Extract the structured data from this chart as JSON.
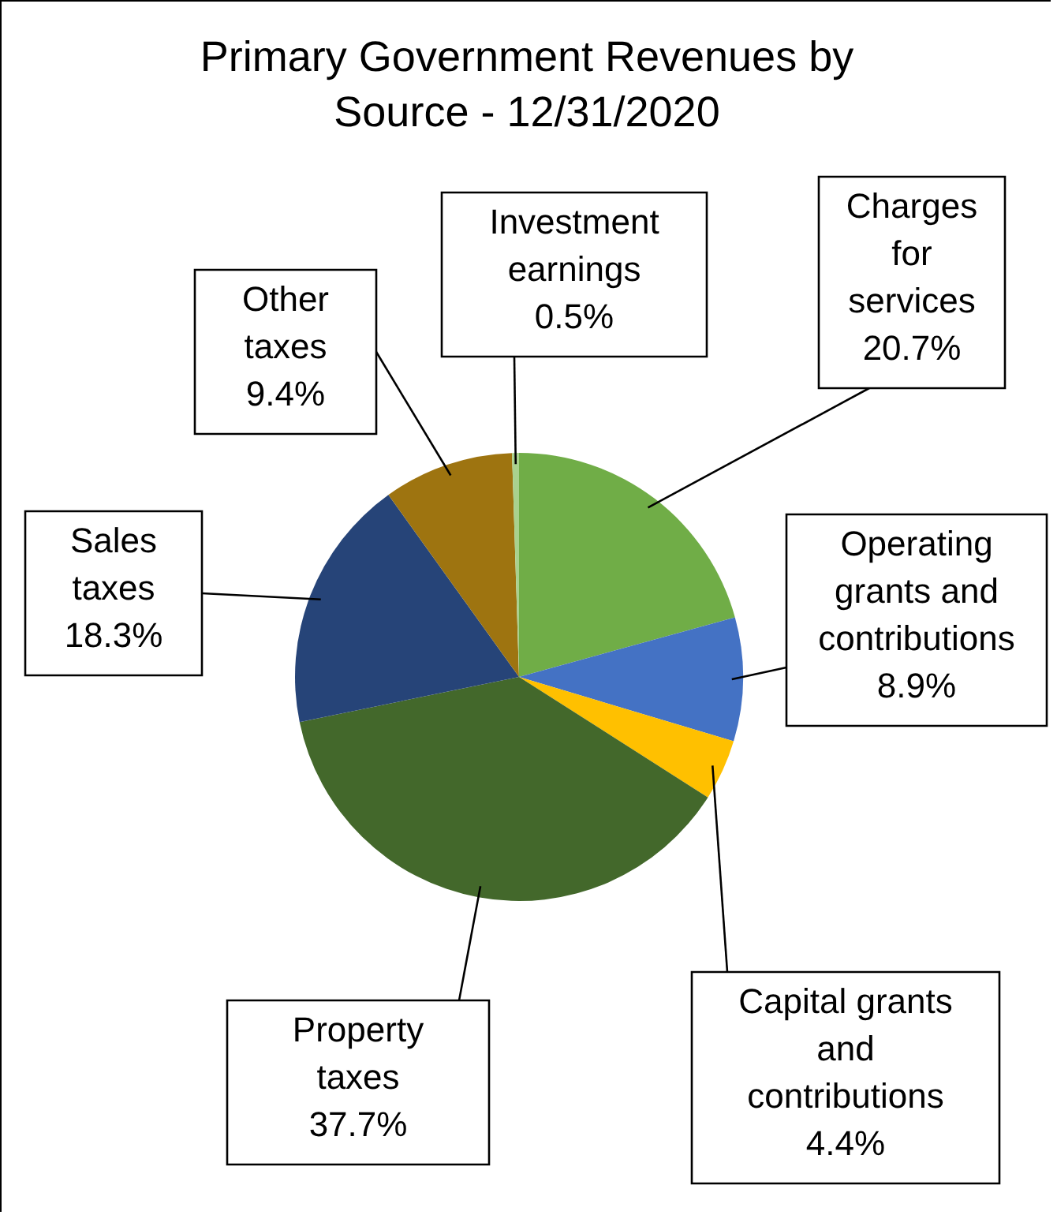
{
  "chart_data": {
    "type": "pie",
    "title": "Primary Government Revenues by Source - 12/31/2020",
    "categories": [
      "Charges for services",
      "Operating grants and contributions",
      "Capital grants and contributions",
      "Property taxes",
      "Sales taxes",
      "Other taxes",
      "Investment earnings"
    ],
    "values": [
      20.7,
      8.9,
      4.4,
      37.7,
      18.3,
      9.4,
      0.5
    ],
    "value_labels": [
      "20.7%",
      "8.9%",
      "4.4%",
      "37.7%",
      "18.3%",
      "9.4%",
      "0.5%"
    ],
    "colors": [
      "#70ad47",
      "#4472c4",
      "#ffc000",
      "#43682b",
      "#264478",
      "#9e7410",
      "#a9d18e"
    ]
  }
}
